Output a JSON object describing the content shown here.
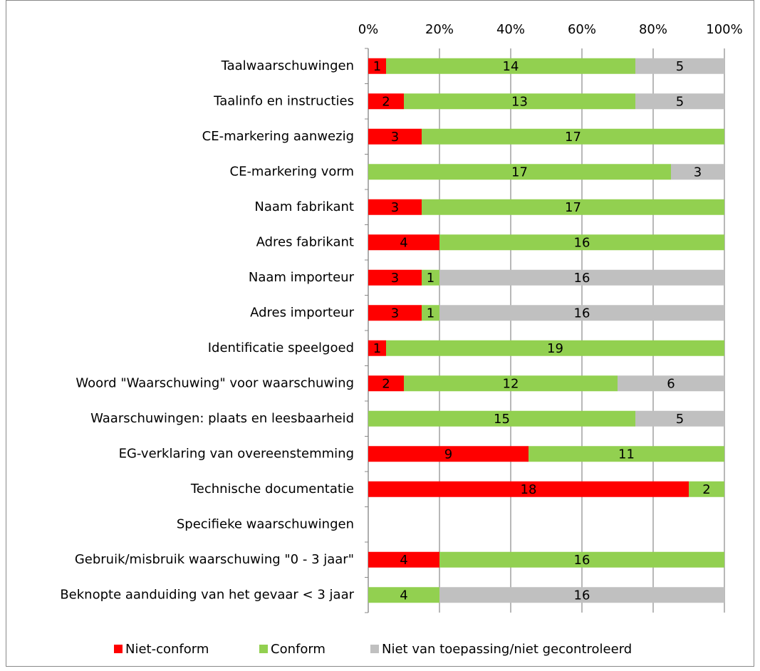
{
  "chart_data": {
    "type": "bar",
    "orientation": "horizontal",
    "stacking": "percent",
    "categories": [
      "Taalwaarschuwingen",
      "Taalinfo en instructies",
      "CE-markering aanwezig",
      "CE-markering vorm",
      "Naam fabrikant",
      "Adres fabrikant",
      "Naam importeur",
      "Adres importeur",
      "Identificatie speelgoed",
      "Woord \"Waarschuwing\" voor waarschuwing",
      "Waarschuwingen: plaats en leesbaarheid",
      "EG-verklaring van overeenstemming",
      "Technische documentatie",
      "Specifieke waarschuwingen",
      "Gebruik/misbruik waarschuwing \"0 - 3 jaar\"",
      "Beknopte aanduiding van het gevaar < 3 jaar"
    ],
    "series": [
      {
        "name": "Niet-conform",
        "color": "#ff0000",
        "values": [
          1,
          2,
          3,
          null,
          3,
          4,
          3,
          3,
          1,
          2,
          null,
          9,
          18,
          null,
          4,
          null
        ]
      },
      {
        "name": "Conform",
        "color": "#92d050",
        "values": [
          14,
          13,
          17,
          17,
          17,
          16,
          1,
          1,
          19,
          12,
          15,
          11,
          2,
          null,
          16,
          4
        ]
      },
      {
        "name": "Niet van toepassing/niet gecontroleerd",
        "color": "#c0c0c0",
        "values": [
          5,
          5,
          null,
          3,
          null,
          null,
          16,
          16,
          null,
          6,
          5,
          null,
          null,
          null,
          null,
          16
        ]
      }
    ],
    "xlim": [
      0,
      100
    ],
    "xticks": [
      {
        "value": 0,
        "label": "0%"
      },
      {
        "value": 20,
        "label": "20%"
      },
      {
        "value": 40,
        "label": "40%"
      },
      {
        "value": 60,
        "label": "60%"
      },
      {
        "value": 80,
        "label": "80%"
      },
      {
        "value": 100,
        "label": "100%"
      }
    ],
    "grid": true,
    "legend": "bottom"
  }
}
